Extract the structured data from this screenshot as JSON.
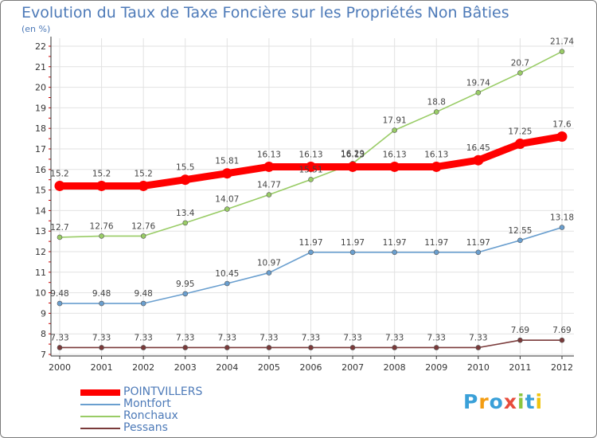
{
  "header": {
    "title": "Evolution du Taux de Taxe Foncière sur les Propriétés Non Bâties",
    "unit": "(en %)"
  },
  "logo": {
    "text": "Proxiti",
    "colors": [
      "#3aa0d8",
      "#f39c12",
      "#3aa0d8",
      "#e74c3c",
      "#8cc63f",
      "#3aa0d8",
      "#f1c40f"
    ]
  },
  "chart_data": {
    "type": "line",
    "title": "Evolution du Taux de Taxe Foncière sur les Propriétés Non Bâties",
    "ylabel": "(en %)",
    "xlabel": "",
    "ylim": [
      7,
      22
    ],
    "yticks": [
      7,
      8,
      9,
      10,
      11,
      12,
      13,
      14,
      15,
      16,
      17,
      18,
      19,
      20,
      21,
      22
    ],
    "grid": true,
    "legend_position": "bottom-left",
    "x": [
      "2000",
      "2001",
      "2002",
      "2003",
      "2004",
      "2005",
      "2006",
      "2007",
      "2008",
      "2009",
      "2010",
      "2011",
      "2012"
    ],
    "series": [
      {
        "name": "POINTVILLERS",
        "color": "#ff0000",
        "emphasis": true,
        "values": [
          15.2,
          15.2,
          15.2,
          15.5,
          15.81,
          16.13,
          16.13,
          16.13,
          16.13,
          16.13,
          16.45,
          17.25,
          17.6
        ],
        "labels": [
          "15.2",
          "15.2",
          "15.2",
          "15.5",
          "15.81",
          "16.13",
          "16.13",
          "16.13",
          "16.13",
          "16.13",
          "16.45",
          "17.25",
          "17.6"
        ]
      },
      {
        "name": "Montfort",
        "color": "#6a9fcf",
        "emphasis": false,
        "values": [
          9.48,
          9.48,
          9.48,
          9.95,
          10.45,
          10.97,
          11.97,
          11.97,
          11.97,
          11.97,
          11.97,
          12.55,
          13.18
        ],
        "labels": [
          "9.48",
          "9.48",
          "9.48",
          "9.95",
          "10.45",
          "10.97",
          "11.97",
          "11.97",
          "11.97",
          "11.97",
          "11.97",
          "12.55",
          "13.18"
        ]
      },
      {
        "name": "Ronchaux",
        "color": "#99cc66",
        "emphasis": false,
        "values": [
          12.7,
          12.76,
          12.76,
          13.4,
          14.07,
          14.77,
          15.51,
          16.29,
          17.91,
          18.8,
          19.74,
          20.7,
          21.74
        ],
        "labels": [
          "12.7",
          "12.76",
          "12.76",
          "13.4",
          "14.07",
          "14.77",
          "15.51",
          "16.29",
          "17.91",
          "18.8",
          "19.74",
          "20.7",
          "21.74"
        ]
      },
      {
        "name": "Pessans",
        "color": "#7a3a3a",
        "emphasis": false,
        "values": [
          7.33,
          7.33,
          7.33,
          7.33,
          7.33,
          7.33,
          7.33,
          7.33,
          7.33,
          7.33,
          7.33,
          7.69,
          7.69
        ],
        "labels": [
          "7.33",
          "7.33",
          "7.33",
          "7.33",
          "7.33",
          "7.33",
          "7.33",
          "7.33",
          "7.33",
          "7.33",
          "7.33",
          "7.69",
          "7.69"
        ]
      }
    ]
  }
}
